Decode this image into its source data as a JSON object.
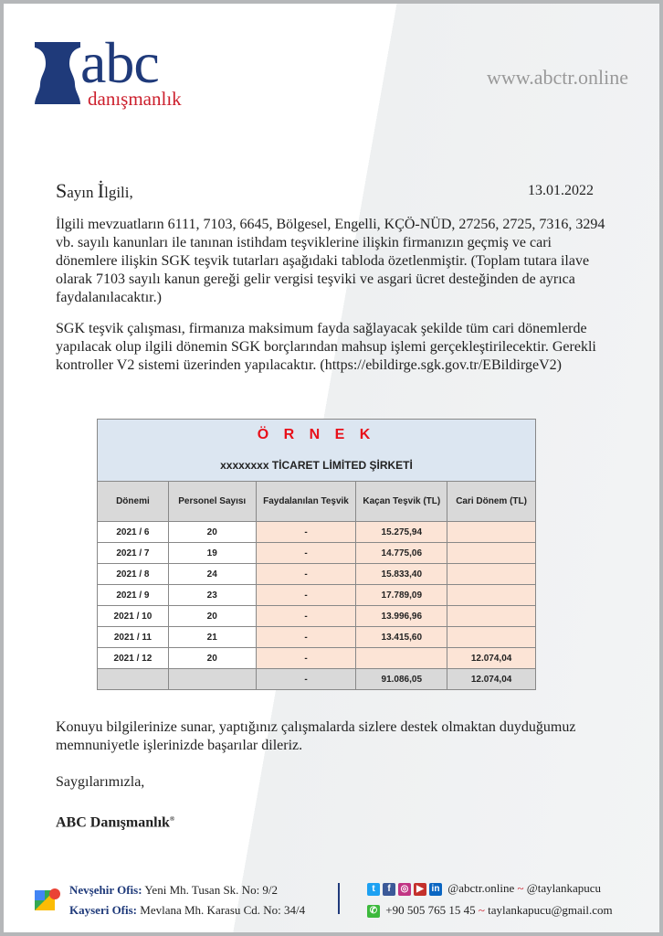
{
  "header": {
    "logo_main": "abc",
    "logo_sub": "danışmanlık",
    "website": "www.abctr.online"
  },
  "letter": {
    "greeting_initial": "S",
    "greeting_rest": "ayın ",
    "greeting_initial2": "İ",
    "greeting_rest2": "lgili,",
    "date": "13.01.2022",
    "p1": "İlgili mevzuatların 6111, 7103, 6645, Bölgesel, Engelli, KÇÖ-NÜD, 27256, 2725, 7316, 3294 vb. sayılı kanunları ile tanınan istihdam teşviklerine ilişkin firmanızın geçmiş ve cari dönemlere ilişkin SGK teşvik tutarları aşağıdaki tabloda özetlenmiştir. (Toplam tutara ilave olarak 7103 sayılı kanun gereği gelir vergisi teşviki ve asgari ücret desteğinden de ayrıca faydalanılacaktır.)",
    "p2": "SGK teşvik çalışması, firmanıza maksimum fayda sağlayacak şekilde tüm cari dönemlerde yapılacak olup ilgili dönemin SGK borçlarından mahsup işlemi gerçekleştirilecektir. Gerekli kontroller V2 sistemi üzerinden yapılacaktır. (https://ebildirge.sgk.gov.tr/EBildirgeV2)",
    "p3": "Konuyu bilgilerinize sunar, yaptığınız çalışmalarda sizlere destek olmaktan duyduğumuz memnuniyetle işlerinizde başarılar dileriz.",
    "closing": "Saygılarımızla,",
    "signature": "ABC Danışmanlık"
  },
  "table": {
    "label": "Ö R N E K",
    "company": "xxxxxxxx TİCARET LİMİTED ŞİRKETİ",
    "headers": [
      "Dönemi",
      "Personel Sayısı",
      "Faydalanılan Teşvik",
      "Kaçan Teşvik (TL)",
      "Cari Dönem (TL)"
    ],
    "rows": [
      [
        "2021 / 6",
        "20",
        "-",
        "15.275,94",
        ""
      ],
      [
        "2021 / 7",
        "19",
        "-",
        "14.775,06",
        ""
      ],
      [
        "2021 / 8",
        "24",
        "-",
        "15.833,40",
        ""
      ],
      [
        "2021 / 9",
        "23",
        "-",
        "17.789,09",
        ""
      ],
      [
        "2021 / 10",
        "20",
        "-",
        "13.996,96",
        ""
      ],
      [
        "2021 / 11",
        "21",
        "-",
        "13.415,60",
        ""
      ],
      [
        "2021 / 12",
        "20",
        "-",
        "",
        "12.074,04"
      ]
    ],
    "total": [
      "",
      "",
      "-",
      "91.086,05",
      "12.074,04"
    ]
  },
  "footer": {
    "office1_label": "Nevşehir Ofis:",
    "office1": "Yeni Mh. Tusan Sk. No: 9/2",
    "office2_label": "Kayseri Ofis:",
    "office2": "Mevlana Mh. Karasu Cd. No: 34/4",
    "social1": "@abctr.online",
    "social2": "@taylankapucu",
    "phone": "+90 505 765 15 45",
    "email": "taylankapucu@gmail.com"
  }
}
